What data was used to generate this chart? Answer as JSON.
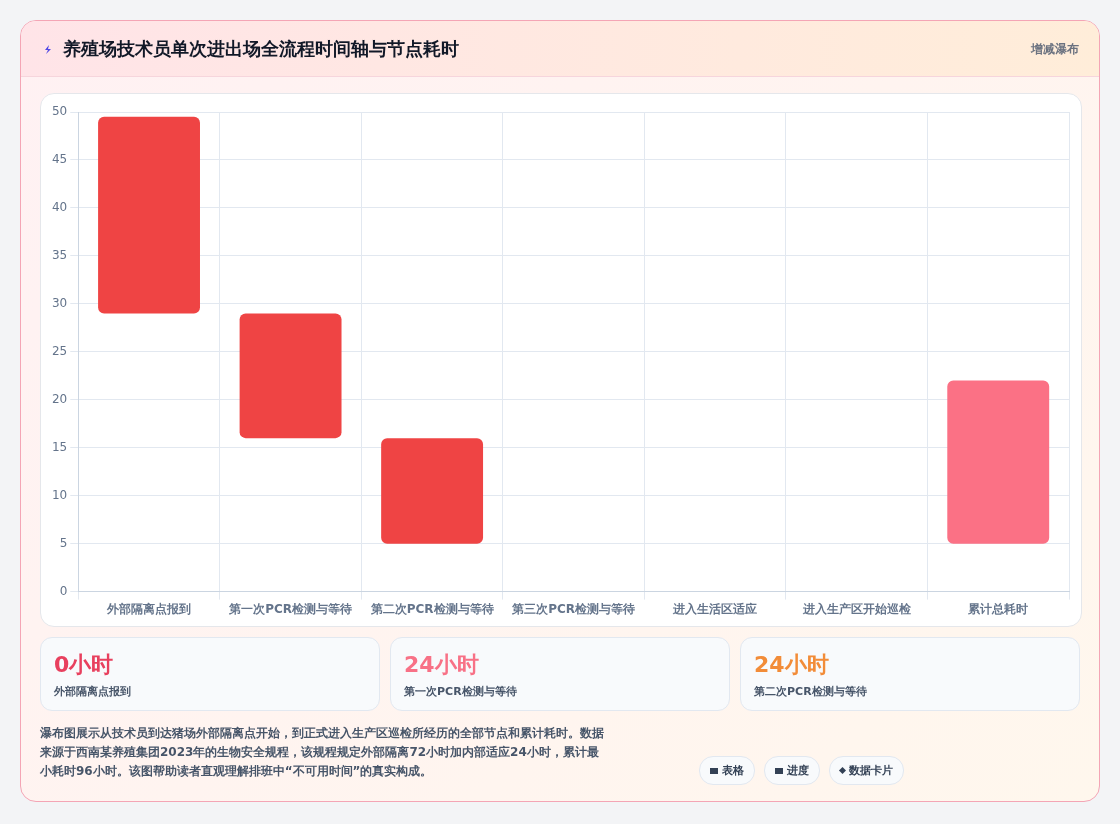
{
  "chart_data": {
    "type": "bar",
    "title": "养殖场技术员单次进出场全流程时间轴与节点耗时",
    "categories": [
      "外部隔离点报到",
      "第一次PCR检测与等待",
      "第二次PCR检测与等待",
      "第三次PCR检测与等待",
      "进入生活区适应",
      "进入生产区开始巡检",
      "累计总耗时"
    ],
    "values": [
      20.5,
      13,
      11,
      null,
      null,
      null,
      17
    ],
    "base": [
      29,
      16,
      5,
      null,
      null,
      null,
      5
    ],
    "colors": [
      "#ef4444",
      "#ef4444",
      "#ef4444",
      "#ef4444",
      "#ef4444",
      "#ef4444",
      "#fb7185"
    ],
    "ylim": [
      0,
      50
    ],
    "yticks": [
      0,
      5,
      10,
      15,
      20,
      25,
      30,
      35,
      40,
      45,
      50
    ],
    "grid": true,
    "legend": false,
    "annotations": [
      "增减瀑布",
      "0小时",
      "外部隔离点报到",
      "24小时",
      "第一次PCR检测与等待",
      "24小时",
      "第二次PCR检测与等待",
      "瀑布图展示从技术员到达猪场外部隔离点开始，到正式进入生产区巡检所经历的全部节点和累计耗时。数据来源于西南某养殖集团2023年的生物安全规程，该规程规定外部隔离72小时加内部适应24小时，累计最小耗时96小时。该图帮助读者直观理解排班中“不可用时间”的真实构成。",
      "表格",
      "进度",
      "数据卡片"
    ]
  }
}
